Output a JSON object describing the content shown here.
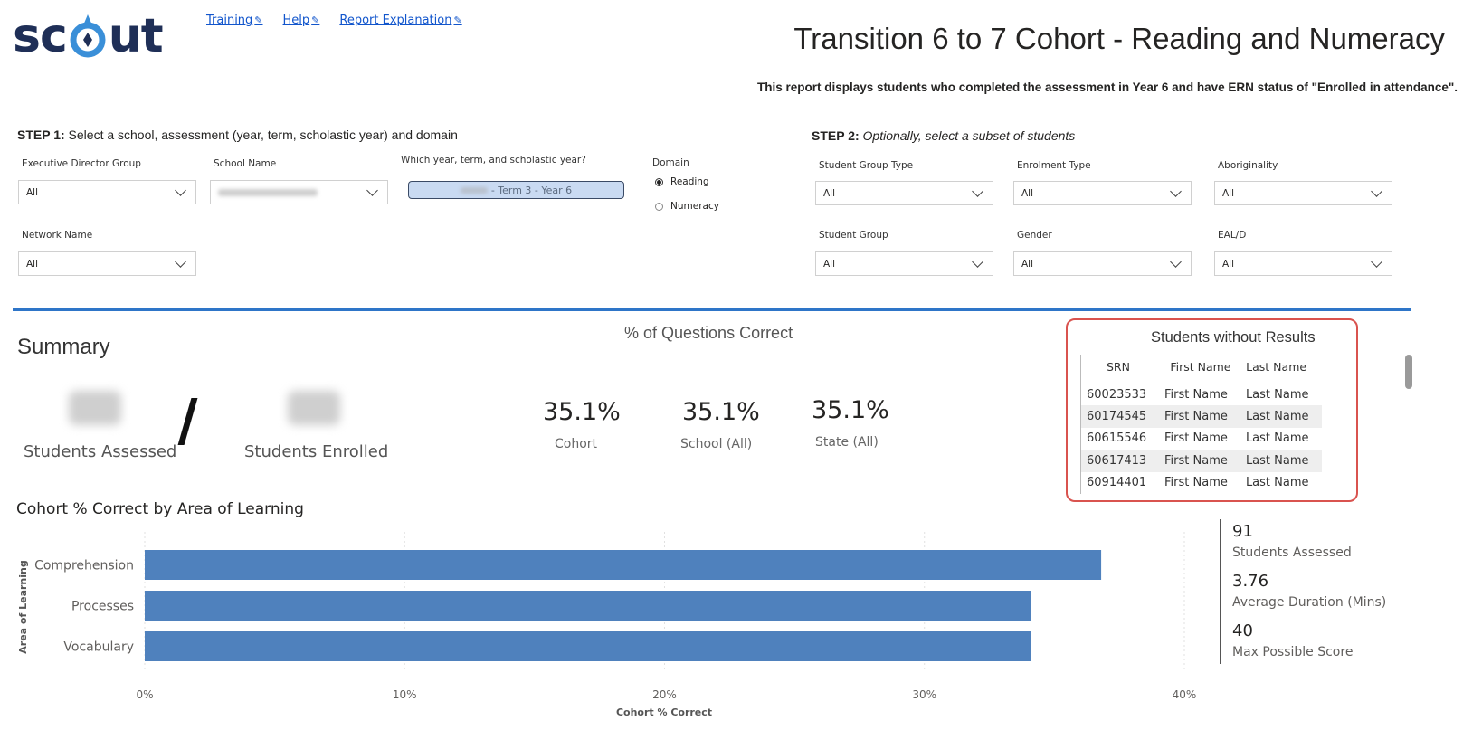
{
  "header": {
    "logo": "scout",
    "links": [
      {
        "label": "Training"
      },
      {
        "label": "Help"
      },
      {
        "label": "Report Explanation"
      }
    ],
    "title": "Transition 6 to 7 Cohort - Reading and Numeracy",
    "description": "This report displays students who completed the assessment in Year 6 and have ERN status of \"Enrolled in attendance\"."
  },
  "step1": {
    "heading_bold": "STEP 1:",
    "heading_text": "Select a school, assessment (year, term, scholastic year) and domain",
    "exec_director_label": "Executive Director Group",
    "exec_director_value": "All",
    "school_label": "School Name",
    "assessment_label": "Which year, term, and scholastic year?",
    "assessment_value": "- Term 3 - Year 6",
    "domain_label": "Domain",
    "domain_options": [
      "Reading",
      "Numeracy"
    ],
    "domain_selected": "Reading",
    "network_label": "Network Name",
    "network_value": "All"
  },
  "step2": {
    "heading_bold": "STEP 2:",
    "heading_text": "Optionally, select a subset of students",
    "filters": [
      {
        "label": "Student Group Type",
        "value": "All"
      },
      {
        "label": "Enrolment Type",
        "value": "All"
      },
      {
        "label": "Aboriginality",
        "value": "All"
      },
      {
        "label": "Student Group",
        "value": "All"
      },
      {
        "label": "Gender",
        "value": "All"
      },
      {
        "label": "EAL/D",
        "value": "All"
      }
    ]
  },
  "summary": {
    "title": "Summary",
    "assessed_label": "Students Assessed",
    "enrolled_label": "Students Enrolled",
    "pct_title": "% of Questions Correct",
    "pct": [
      {
        "value": "35.1%",
        "label": "Cohort"
      },
      {
        "value": "35.1%",
        "label": "School (All)"
      },
      {
        "value": "35.1%",
        "label": "State (All)"
      }
    ]
  },
  "without_results": {
    "title": "Students without Results",
    "columns": [
      "SRN",
      "First Name",
      "Last Name"
    ],
    "rows": [
      [
        "60023533",
        "First Name",
        "Last Name"
      ],
      [
        "60174545",
        "First Name",
        "Last Name"
      ],
      [
        "60615546",
        "First Name",
        "Last Name"
      ],
      [
        "60617413",
        "First Name",
        "Last Name"
      ],
      [
        "60914401",
        "First Name",
        "Last Name"
      ]
    ]
  },
  "chart_title": "Cohort % Correct by Area of Learning",
  "chart_data": {
    "type": "bar",
    "orientation": "horizontal",
    "categories": [
      "Comprehension",
      "Processes",
      "Vocabulary"
    ],
    "values": [
      36.8,
      34.1,
      34.1
    ],
    "xlabel": "Cohort % Correct",
    "ylabel": "Area of Learning",
    "xlim": [
      0,
      40
    ],
    "xticks": [
      "0%",
      "10%",
      "20%",
      "30%",
      "40%"
    ],
    "grid": true,
    "bar_color": "#4f81bd"
  },
  "kpis": [
    {
      "value": "91",
      "label": "Students Assessed"
    },
    {
      "value": "3.76",
      "label": "Average Duration (Mins)"
    },
    {
      "value": "40",
      "label": "Max Possible Score"
    }
  ]
}
